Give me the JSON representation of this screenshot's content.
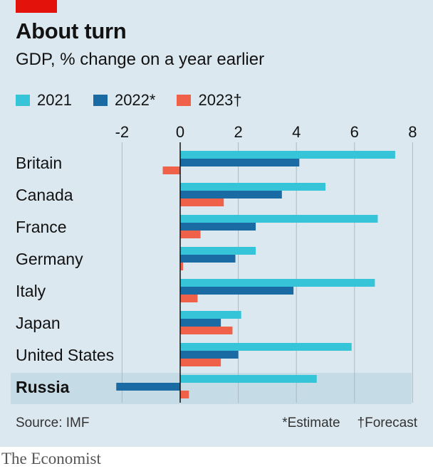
{
  "header": {
    "title": "About turn",
    "subtitle": "GDP, % change on a year earlier"
  },
  "footer": {
    "source": "Source: IMF",
    "note_estimate": "*Estimate",
    "note_forecast": "†Forecast"
  },
  "brand": "The Economist",
  "colors": {
    "s2021": "#36c4d8",
    "s2022": "#1a6ba3",
    "s2023": "#f0614a",
    "highlight_row": "#c5dbe5",
    "brand_red": "#e3120b"
  },
  "chart_data": {
    "type": "bar",
    "orientation": "horizontal",
    "title": "About turn",
    "subtitle": "GDP, % change on a year earlier",
    "categories": [
      "Britain",
      "Canada",
      "France",
      "Germany",
      "Italy",
      "Japan",
      "United States",
      "Russia"
    ],
    "highlight_category": "Russia",
    "series": [
      {
        "name": "2021",
        "values": [
          7.4,
          5.0,
          6.8,
          2.6,
          6.7,
          2.1,
          5.9,
          4.7
        ]
      },
      {
        "name": "2022*",
        "values": [
          4.1,
          3.5,
          2.6,
          1.9,
          3.9,
          1.4,
          2.0,
          -2.2
        ]
      },
      {
        "name": "2023†",
        "values": [
          -0.6,
          1.5,
          0.7,
          0.1,
          0.6,
          1.8,
          1.4,
          0.3
        ]
      }
    ],
    "xlim": [
      -2.5,
      8
    ],
    "xticks": [
      -2,
      0,
      2,
      4,
      6,
      8
    ],
    "xticklabels": [
      "-2",
      "0",
      "2",
      "4",
      "6",
      "8"
    ],
    "grid": true,
    "legend_position": "top-left"
  }
}
